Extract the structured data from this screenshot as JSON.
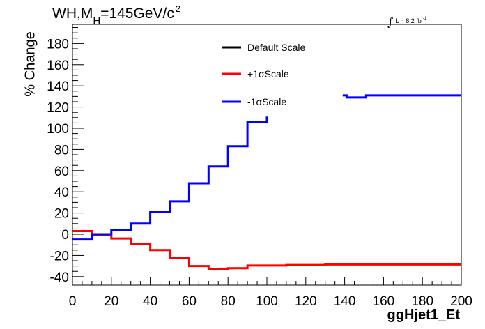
{
  "title": {
    "prefix": "WH,M",
    "subscript": "H",
    "suffix": "=145GeV/c",
    "superscript": "2"
  },
  "luminosity": {
    "integral": "∫",
    "text": "L = 8.2 fb",
    "superscript": "-1"
  },
  "chart_data": {
    "type": "line",
    "title": "WH,MH=145GeV/c2",
    "xlabel": "ggHjet1_Et",
    "ylabel": "% Change",
    "xlim": [
      0,
      200
    ],
    "ylim": [
      -48,
      198
    ],
    "x_ticks": [
      0,
      20,
      40,
      60,
      80,
      100,
      120,
      140,
      160,
      180,
      200
    ],
    "x_tick_labels": [
      "0",
      "20",
      "40",
      "60",
      "80",
      "100",
      "120",
      "140",
      "160",
      "180",
      "200"
    ],
    "y_ticks": [
      -40,
      -20,
      0,
      20,
      40,
      60,
      80,
      100,
      120,
      140,
      160,
      180
    ],
    "y_tick_labels": [
      "-40",
      "-20",
      "0",
      "20",
      "40",
      "60",
      "80",
      "100",
      "120",
      "140",
      "160",
      "180"
    ],
    "grid": false,
    "legend_position": "top-center",
    "style": "step-histogram",
    "series": [
      {
        "name": "Default Scale",
        "color": "#000000",
        "bins": []
      },
      {
        "name": "+1σScale",
        "color": "#ff0000",
        "bins": [
          {
            "x0": 0,
            "x1": 10,
            "y": 3
          },
          {
            "x0": 10,
            "x1": 20,
            "y": -1
          },
          {
            "x0": 20,
            "x1": 30,
            "y": -4
          },
          {
            "x0": 30,
            "x1": 40,
            "y": -9
          },
          {
            "x0": 40,
            "x1": 50,
            "y": -15
          },
          {
            "x0": 50,
            "x1": 60,
            "y": -22
          },
          {
            "x0": 60,
            "x1": 70,
            "y": -30
          },
          {
            "x0": 70,
            "x1": 80,
            "y": -33
          },
          {
            "x0": 80,
            "x1": 90,
            "y": -32
          },
          {
            "x0": 90,
            "x1": 110,
            "y": -29.5
          },
          {
            "x0": 110,
            "x1": 130,
            "y": -29
          },
          {
            "x0": 130,
            "x1": 200,
            "y": -28.5
          }
        ]
      },
      {
        "name": "-1σScale",
        "color": "#0000ff",
        "bins": [
          {
            "x0": 0,
            "x1": 10,
            "y": -5
          },
          {
            "x0": 10,
            "x1": 20,
            "y": 0
          },
          {
            "x0": 20,
            "x1": 30,
            "y": 4
          },
          {
            "x0": 30,
            "x1": 40,
            "y": 10
          },
          {
            "x0": 40,
            "x1": 50,
            "y": 21
          },
          {
            "x0": 50,
            "x1": 60,
            "y": 31
          },
          {
            "x0": 60,
            "x1": 70,
            "y": 48
          },
          {
            "x0": 70,
            "x1": 80,
            "y": 64
          },
          {
            "x0": 80,
            "x1": 90,
            "y": 83
          },
          {
            "x0": 90,
            "x1": 100,
            "y": 106
          },
          {
            "x0": 100,
            "x1": 100,
            "y": 106,
            "x2": 100,
            "y2": 111
          }
        ],
        "segments": [
          [
            [
              0,
              -5
            ],
            [
              10,
              -5
            ],
            [
              10,
              0
            ],
            [
              20,
              0
            ],
            [
              20,
              4
            ],
            [
              30,
              4
            ],
            [
              30,
              10
            ],
            [
              40,
              10
            ],
            [
              40,
              21
            ],
            [
              50,
              21
            ],
            [
              50,
              31
            ],
            [
              60,
              31
            ],
            [
              60,
              48
            ],
            [
              70,
              48
            ],
            [
              70,
              64
            ],
            [
              80,
              64
            ],
            [
              80,
              83
            ],
            [
              90,
              83
            ],
            [
              90,
              106
            ],
            [
              100,
              106
            ],
            [
              100,
              111
            ]
          ],
          [
            [
              139,
              131
            ],
            [
              141,
              131
            ],
            [
              141,
              129
            ],
            [
              151,
              129
            ],
            [
              151,
              131
            ],
            [
              200,
              131
            ]
          ]
        ]
      }
    ]
  }
}
